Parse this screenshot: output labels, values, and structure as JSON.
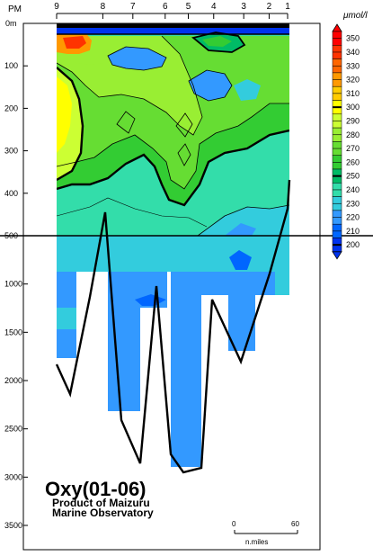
{
  "chart_data": {
    "type": "contour",
    "title": "Oxy(01-06)",
    "subtitle_lines": [
      "Product of Maizuru",
      "Marine Observatory"
    ],
    "top_axis": {
      "label": "PM",
      "stations": [
        {
          "label": "9",
          "pos": 0.0
        },
        {
          "label": "8",
          "pos": 0.2
        },
        {
          "label": "7",
          "pos": 0.33
        },
        {
          "label": "6",
          "pos": 0.47
        },
        {
          "label": "5",
          "pos": 0.57
        },
        {
          "label": "4",
          "pos": 0.68
        },
        {
          "label": "3",
          "pos": 0.81
        },
        {
          "label": "2",
          "pos": 0.92
        },
        {
          "label": "1",
          "pos": 1.0
        }
      ]
    },
    "depth_axis": {
      "upper_ticks": [
        {
          "label": "0m",
          "depth": 0
        },
        {
          "label": "100",
          "depth": 100
        },
        {
          "label": "200",
          "depth": 200
        },
        {
          "label": "300",
          "depth": 300
        },
        {
          "label": "400",
          "depth": 400
        },
        {
          "label": "500",
          "depth": 500
        }
      ],
      "lower_ticks": [
        {
          "label": "1000",
          "depth": 1000
        },
        {
          "label": "1500",
          "depth": 1500
        },
        {
          "label": "2000",
          "depth": 2000
        },
        {
          "label": "2500",
          "depth": 2500
        },
        {
          "label": "3000",
          "depth": 3000
        },
        {
          "label": "3500",
          "depth": 3500
        }
      ],
      "split_depth": 500
    },
    "colorbar": {
      "unit": "μmol/l",
      "levels": [
        350,
        340,
        330,
        320,
        310,
        300,
        290,
        280,
        270,
        260,
        250,
        240,
        230,
        220,
        210,
        200
      ],
      "bold_levels": [
        300,
        250,
        200
      ],
      "colors": [
        "#ff0000",
        "#ff3300",
        "#ff6600",
        "#ff9900",
        "#ffcc00",
        "#ffff00",
        "#ccff33",
        "#99ee33",
        "#66dd33",
        "#33cc33",
        "#00bb66",
        "#33ddaa",
        "#33ccdd",
        "#3399ff",
        "#0066ff",
        "#0033ee"
      ]
    },
    "scale_bar": {
      "start_label": "0",
      "end_label": "60",
      "unit": "n.miles"
    }
  }
}
